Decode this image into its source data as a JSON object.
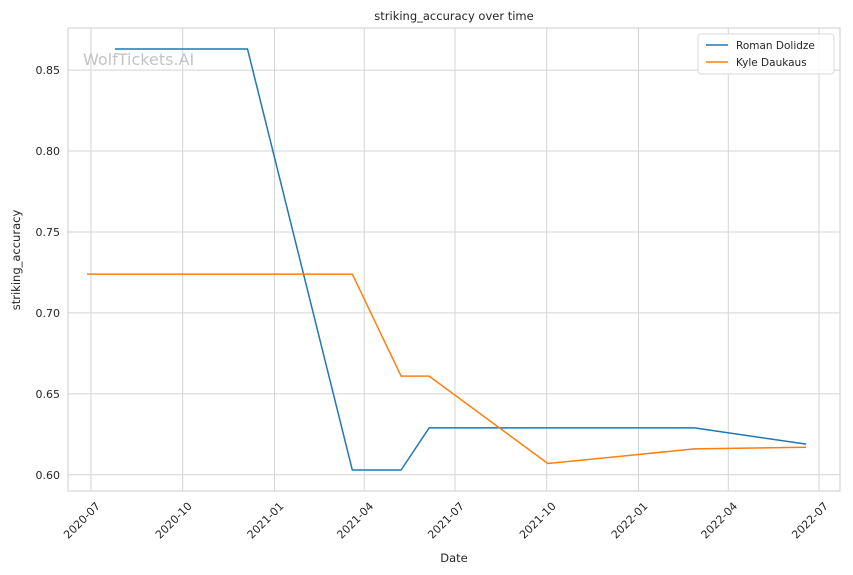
{
  "chart_data": {
    "type": "line",
    "title": "striking_accuracy over time",
    "xlabel": "Date",
    "ylabel": "striking_accuracy",
    "watermark": "WolfTickets.AI",
    "x_ticks": [
      "2020-07",
      "2020-10",
      "2021-01",
      "2021-04",
      "2021-07",
      "2021-10",
      "2022-01",
      "2022-04",
      "2022-07"
    ],
    "y_ticks": [
      "0.60",
      "0.65",
      "0.70",
      "0.75",
      "0.80",
      "0.85"
    ],
    "xlim": [
      "2020-06-08",
      "2022-07-22"
    ],
    "ylim": [
      0.59,
      0.876
    ],
    "grid": true,
    "legend_position": "top-right",
    "series": [
      {
        "name": "Roman Dolidze",
        "color": "#1f77b4",
        "points": [
          {
            "x": "2020-07-25",
            "y": 0.863
          },
          {
            "x": "2020-12-05",
            "y": 0.863
          },
          {
            "x": "2021-03-20",
            "y": 0.603
          },
          {
            "x": "2021-05-08",
            "y": 0.603
          },
          {
            "x": "2021-06-05",
            "y": 0.629
          },
          {
            "x": "2022-02-26",
            "y": 0.629
          },
          {
            "x": "2022-06-18",
            "y": 0.619
          }
        ]
      },
      {
        "name": "Kyle Daukaus",
        "color": "#ff7f0e",
        "points": [
          {
            "x": "2020-06-27",
            "y": 0.724
          },
          {
            "x": "2021-03-20",
            "y": 0.724
          },
          {
            "x": "2021-05-08",
            "y": 0.661
          },
          {
            "x": "2021-06-05",
            "y": 0.661
          },
          {
            "x": "2021-10-02",
            "y": 0.607
          },
          {
            "x": "2022-02-26",
            "y": 0.616
          },
          {
            "x": "2022-06-18",
            "y": 0.617
          }
        ]
      }
    ]
  }
}
